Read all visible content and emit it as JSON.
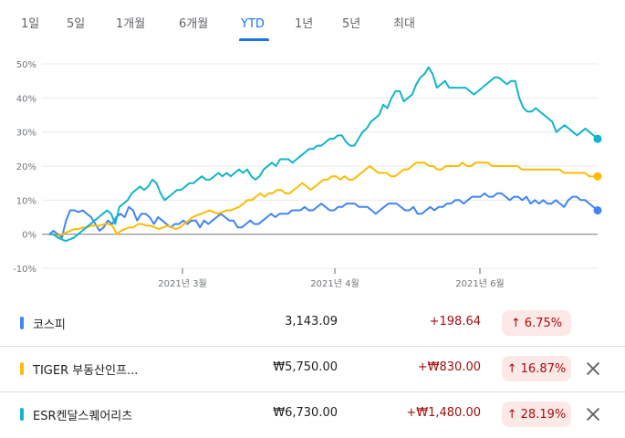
{
  "tabs": [
    {
      "label": "1일"
    },
    {
      "label": "5일"
    },
    {
      "label": "1개월"
    },
    {
      "label": "6개월"
    },
    {
      "label": "YTD",
      "active": true
    },
    {
      "label": "1년"
    },
    {
      "label": "5년"
    },
    {
      "label": "최대"
    }
  ],
  "chart_data": {
    "type": "line",
    "y_ticks": [
      "50%",
      "40%",
      "30%",
      "20%",
      "10%",
      "0%",
      "-10%"
    ],
    "ylim": [
      -10,
      50
    ],
    "x_ticks": [
      "2021년 3월",
      "2021년 4월",
      "2021년 6월"
    ],
    "series": [
      {
        "name": "코스피",
        "color": "#4285f4",
        "values": [
          0,
          1,
          0,
          -1,
          4,
          7,
          7,
          6.5,
          7,
          6,
          5,
          3,
          1,
          2,
          4,
          3,
          5,
          6,
          5,
          8,
          7,
          4,
          6,
          6,
          5,
          3,
          5,
          4,
          3,
          2,
          3,
          3,
          4,
          3,
          4,
          4,
          2,
          4,
          3,
          4,
          5,
          6,
          5,
          4,
          4,
          2,
          2,
          3,
          4,
          3,
          3,
          4,
          5,
          6,
          5,
          6,
          6,
          6,
          7,
          7,
          7,
          8,
          7,
          7,
          8,
          9,
          8,
          7,
          7,
          8,
          8,
          9,
          9,
          9,
          8,
          8,
          8,
          7,
          6,
          7,
          8,
          9,
          9,
          9,
          8,
          7,
          7,
          8,
          6,
          6,
          7,
          8,
          7,
          8,
          8,
          9,
          9,
          10,
          10,
          9,
          10,
          11,
          11,
          11,
          12,
          11,
          11,
          12,
          12,
          11,
          10,
          11,
          11,
          10,
          11,
          9,
          10,
          9,
          10,
          9,
          9,
          10,
          9,
          8,
          10,
          11,
          11,
          10,
          10,
          9,
          8,
          7
        ]
      },
      {
        "name": "TIGER 부동산인프라고배당",
        "color": "#fbbc04",
        "values": [
          0,
          0,
          -0.5,
          0,
          0.5,
          1,
          1.5,
          1.5,
          2,
          2,
          2.5,
          2.5,
          2.5,
          3,
          3,
          2.5,
          0,
          1,
          1.5,
          2,
          2,
          3,
          3,
          2.5,
          2.5,
          2,
          1.5,
          2,
          2.5,
          2,
          1.5,
          2,
          3,
          4,
          5,
          5.5,
          6,
          6.5,
          7,
          6.5,
          6,
          6.5,
          7,
          7,
          7.5,
          8,
          9,
          10,
          10,
          11,
          12,
          11,
          12,
          12,
          13,
          13,
          12,
          12,
          13,
          14,
          15,
          14,
          13,
          14,
          15,
          16,
          16,
          17,
          17,
          16,
          17,
          16,
          16,
          17,
          18,
          19,
          20,
          19,
          18,
          18,
          18,
          17,
          17,
          18,
          19,
          19,
          20,
          21,
          21,
          21,
          20,
          20,
          19,
          19,
          20,
          20,
          20,
          20,
          21,
          20,
          20,
          21,
          21,
          21,
          21,
          20,
          20,
          20,
          20,
          20,
          20,
          20,
          19,
          19,
          19,
          19,
          19,
          19,
          19,
          19,
          19,
          19,
          18,
          18,
          18,
          18,
          18,
          18,
          17,
          17,
          17
        ]
      },
      {
        "name": "ESR켄달스퀘어리츠",
        "color": "#12b5cb",
        "values": [
          0,
          0,
          -1,
          -1.5,
          -2,
          -1.5,
          -1,
          0,
          1,
          2,
          3,
          4,
          5,
          6,
          7,
          6,
          3,
          8,
          9,
          10,
          12,
          13,
          14,
          13,
          14,
          16,
          15,
          12,
          10,
          11,
          12,
          13,
          13,
          14,
          15,
          15,
          16,
          17,
          16,
          16,
          17,
          18,
          17,
          18,
          17,
          18,
          19,
          18,
          19,
          17,
          16,
          17,
          19,
          20,
          21,
          20,
          22,
          22,
          22,
          21,
          22,
          23,
          24,
          25,
          25,
          26,
          26,
          27,
          28,
          28,
          29,
          29,
          27,
          26,
          26,
          28,
          30,
          31,
          33,
          34,
          35,
          38,
          37,
          40,
          42,
          42,
          39,
          40,
          41,
          44,
          46,
          47,
          49,
          47,
          43,
          44,
          45,
          43,
          43,
          43,
          43,
          43,
          42,
          41,
          42,
          43,
          44,
          45,
          46,
          46,
          45,
          44,
          45,
          45,
          40,
          37,
          36,
          36,
          37,
          36,
          35,
          34,
          33,
          30,
          31,
          32,
          31,
          30,
          29,
          30,
          31,
          30,
          29,
          28
        ]
      }
    ]
  },
  "stocks": [
    {
      "name": "코스피",
      "price": "3,143.09",
      "change": "+198.64",
      "pct": "6.75%",
      "color": "#4285f4",
      "removable": false
    },
    {
      "name": "TIGER 부동산인프...",
      "price": "₩5,750.00",
      "change": "+₩830.00",
      "pct": "16.87%",
      "color": "#fbbc04",
      "removable": true
    },
    {
      "name": "ESR켄달스퀘어리츠",
      "price": "₩6,730.00",
      "change": "+₩1,480.00",
      "pct": "28.19%",
      "color": "#12b5cb",
      "removable": true
    }
  ]
}
